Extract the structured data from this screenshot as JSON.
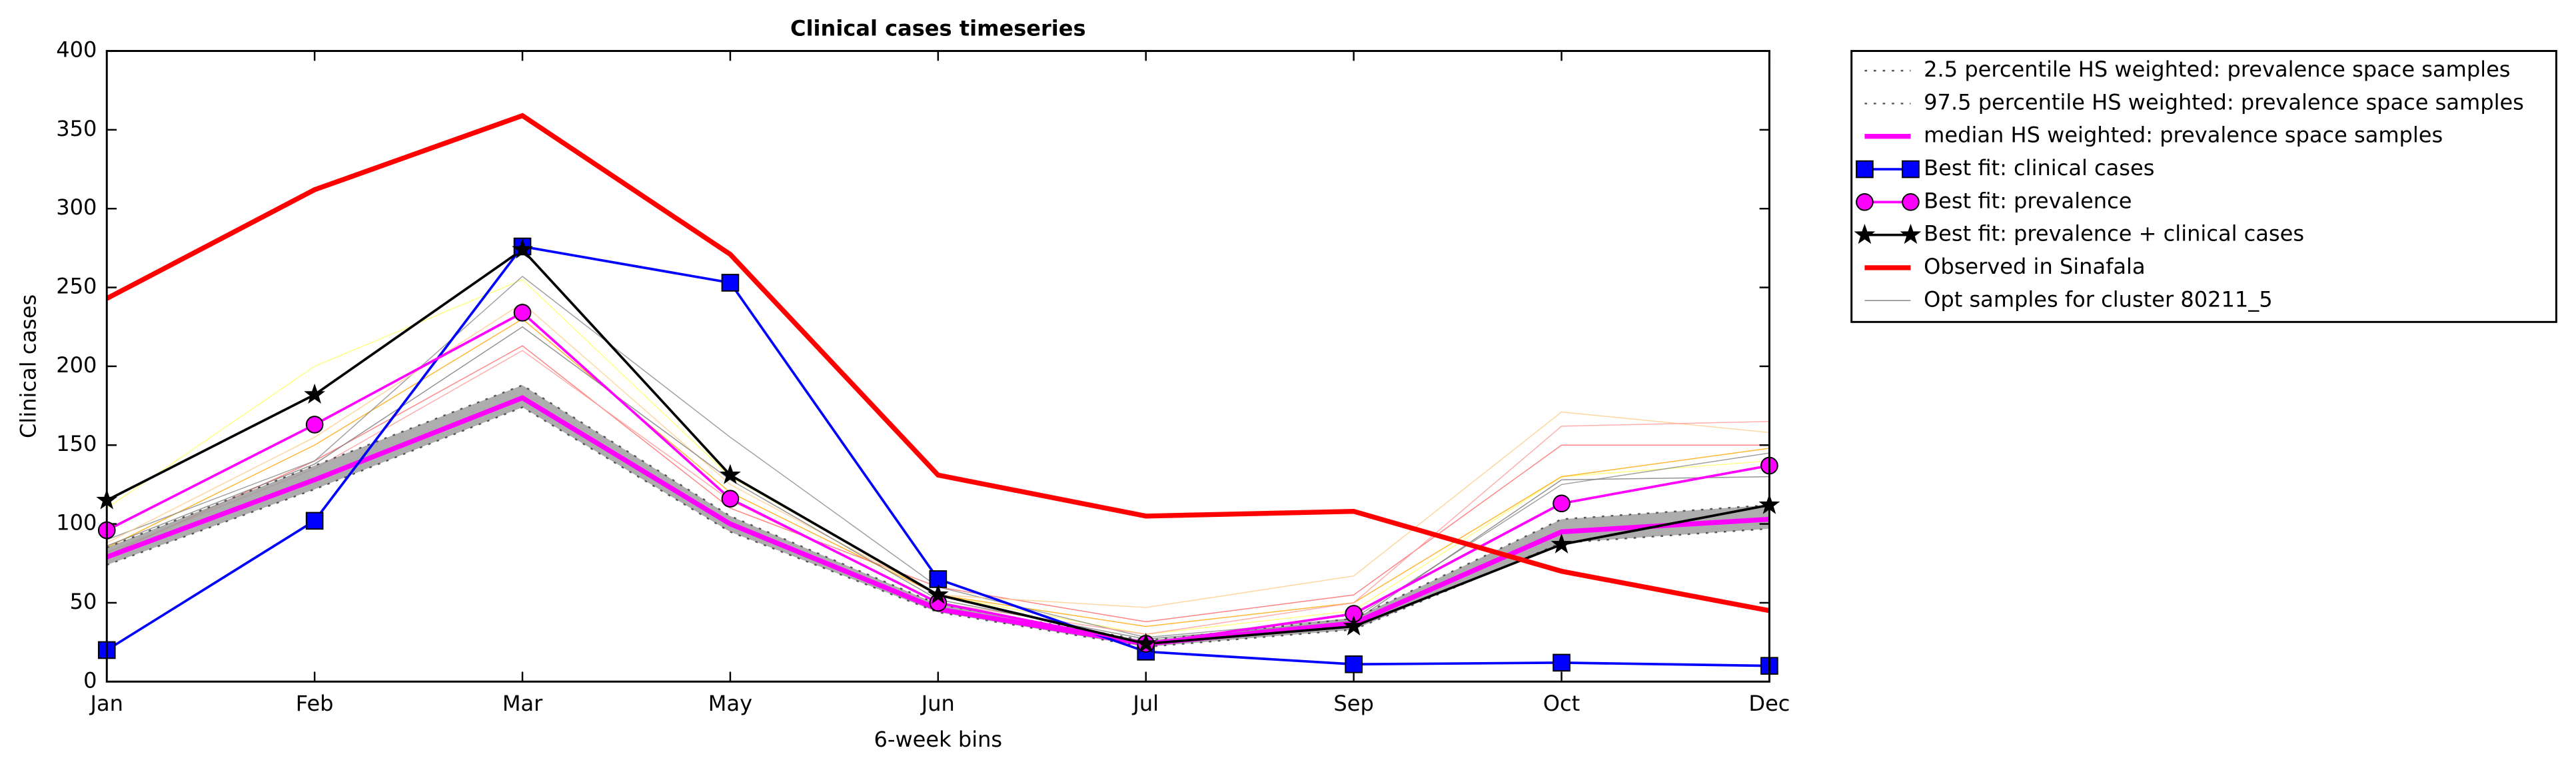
{
  "chart_data": {
    "type": "line",
    "title": "Clinical cases timeseries",
    "x_label": "6-week bins",
    "y_label": "Clinical cases",
    "categories": [
      "Jan",
      "Feb",
      "Mar",
      "May",
      "Jun",
      "Jul",
      "Sep",
      "Oct",
      "Dec"
    ],
    "ylim": [
      0,
      400
    ],
    "yticks": [
      0,
      50,
      100,
      150,
      200,
      250,
      300,
      350,
      400
    ],
    "legend": "outside-upper-right",
    "band_between": [
      0,
      1
    ],
    "band_color": "#999999",
    "series": [
      {
        "name": "2.5 percentile HS weighted: prevalence space samples",
        "color": "#555555",
        "linestyle": "dotted",
        "width": 1,
        "values": [
          74,
          122,
          174,
          95,
          44,
          22,
          33,
          88,
          97
        ]
      },
      {
        "name": "97.5 percentile HS weighted: prevalence space samples",
        "color": "#555555",
        "linestyle": "dotted",
        "width": 1,
        "values": [
          85,
          137,
          188,
          105,
          49,
          26,
          40,
          103,
          112
        ]
      },
      {
        "name": "median HS weighted: prevalence space samples",
        "color": "#ff00ff",
        "linestyle": "solid",
        "width": 3,
        "values": [
          79,
          128,
          180,
          100,
          46,
          24,
          37,
          95,
          103
        ]
      },
      {
        "name": "Best fit: clinical cases",
        "color": "#0000ff",
        "marker": "square",
        "linestyle": "solid",
        "width": 1.5,
        "values": [
          20,
          102,
          276,
          253,
          65,
          19,
          11,
          12,
          10
        ]
      },
      {
        "name": "Best fit: prevalence",
        "color": "#ff00ff",
        "marker": "circle",
        "linestyle": "solid",
        "width": 1.5,
        "values": [
          96,
          163,
          234,
          116,
          50,
          24,
          43,
          113,
          137
        ]
      },
      {
        "name": "Best fit: prevalence + clinical cases",
        "color": "#000000",
        "marker": "star",
        "linestyle": "solid",
        "width": 1.5,
        "values": [
          115,
          182,
          274,
          131,
          55,
          24,
          35,
          87,
          112
        ]
      },
      {
        "name": "Observed in Sinafala",
        "color": "#ff0000",
        "linestyle": "solid",
        "width": 3,
        "values": [
          243,
          312,
          359,
          271,
          131,
          105,
          108,
          70,
          45
        ]
      },
      {
        "name": "Opt samples for cluster 80211_5",
        "color": "#888888",
        "linestyle": "solid",
        "width": 0.6,
        "samples": [
          {
            "color": "#ffff66",
            "values": [
              110,
              200,
              255,
              130,
              55,
              30,
              45,
              130,
              140
            ]
          },
          {
            "color": "#ffa500",
            "values": [
              85,
              150,
              230,
              120,
              55,
              35,
              50,
              130,
              148
            ]
          },
          {
            "color": "#ff6666",
            "values": [
              80,
              140,
              213,
              110,
              60,
              38,
              55,
              150,
              150
            ]
          },
          {
            "color": "#888888",
            "values": [
              90,
              140,
              257,
              155,
              60,
              28,
              40,
              125,
              145
            ]
          },
          {
            "color": "#ffcc88",
            "values": [
              88,
              155,
              240,
              125,
              55,
              47,
              67,
              171,
              158
            ]
          },
          {
            "color": "#ff9999",
            "values": [
              82,
              135,
              210,
              115,
              50,
              30,
              50,
              162,
              165
            ]
          },
          {
            "color": "#777777",
            "values": [
              86,
              138,
              225,
              128,
              52,
              27,
              38,
              128,
              130
            ]
          }
        ]
      }
    ]
  }
}
